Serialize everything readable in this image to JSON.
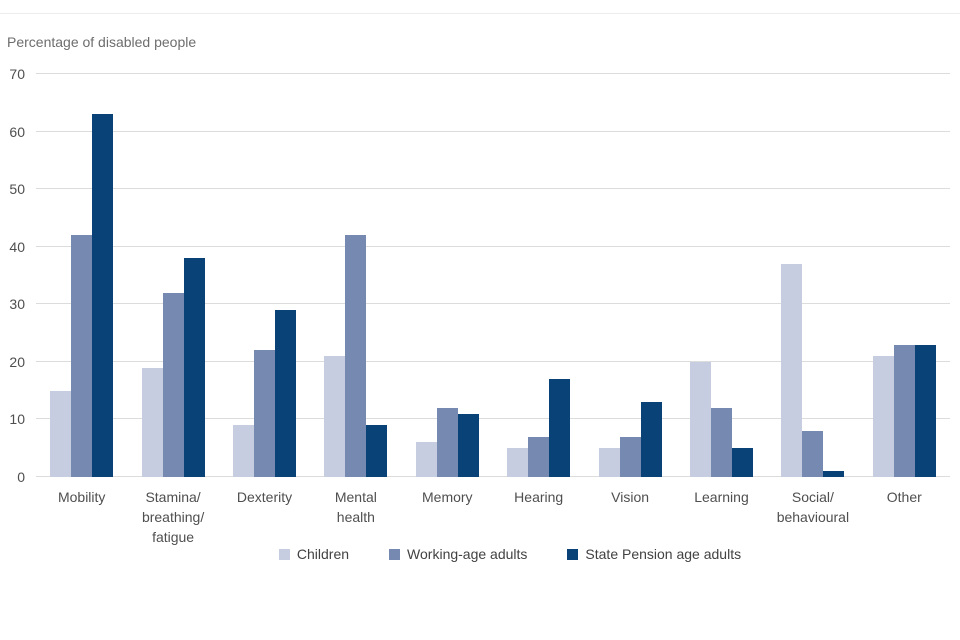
{
  "chart_data": {
    "type": "bar",
    "title": "Percentage of disabled people",
    "categories": [
      [
        "Mobility"
      ],
      [
        "Stamina/",
        "breathing/",
        "fatigue"
      ],
      [
        "Dexterity"
      ],
      [
        "Mental",
        "health"
      ],
      [
        "Memory"
      ],
      [
        "Hearing"
      ],
      [
        "Vision"
      ],
      [
        "Learning"
      ],
      [
        "Social/",
        "behavioural"
      ],
      [
        "Other"
      ]
    ],
    "series": [
      {
        "name": "Children",
        "color": "#c7cde0",
        "values": [
          15,
          19,
          9,
          21,
          6,
          5,
          5,
          20,
          37,
          21
        ]
      },
      {
        "name": "Working-age adults",
        "color": "#7589b1",
        "values": [
          42,
          32,
          22,
          42,
          12,
          7,
          7,
          12,
          8,
          23
        ]
      },
      {
        "name": "State Pension age adults",
        "color": "#084276",
        "values": [
          63,
          38,
          29,
          9,
          11,
          17,
          13,
          5,
          1,
          23
        ]
      }
    ],
    "ylim": [
      0,
      70
    ],
    "ytick_step": 10,
    "xlabel": "",
    "ylabel": "Percentage of disabled people",
    "grid": "horizontal",
    "legend_position": "bottom",
    "colors": {
      "grid": "#dcdcdc",
      "axis_text": "#4f4f4f",
      "title_text": "#6d6d6d"
    }
  }
}
